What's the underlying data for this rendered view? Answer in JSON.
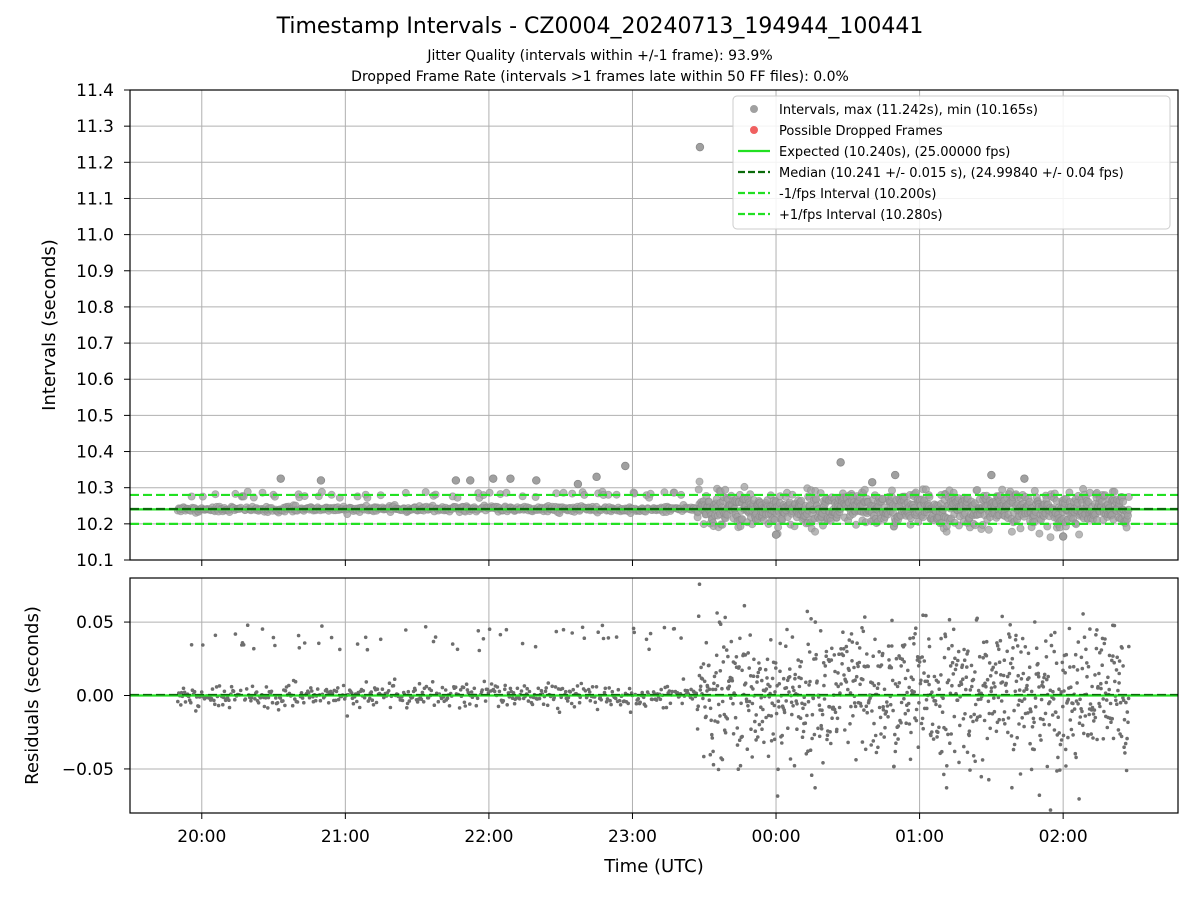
{
  "title": "Timestamp Intervals - CZ0004_20240713_194944_100441",
  "subtitle1": "Jitter Quality (intervals within +/-1 frame): 93.9%",
  "subtitle2": "Dropped Frame Rate (intervals >1 frames late within 50 FF files): 0.0%",
  "colors": {
    "points": "#808080",
    "dropped": "#f06060",
    "expected": "#22e022",
    "median": "#0a6a0a",
    "interval_lines": "#22e022",
    "grid": "#b0b0b0"
  },
  "chart_data": [
    {
      "type": "scatter",
      "panel": "intervals",
      "ylabel": "Intervals (seconds)",
      "ylim": [
        10.1,
        11.4
      ],
      "yticks": [
        "10.1",
        "10.2",
        "10.3",
        "10.4",
        "10.5",
        "10.6",
        "10.7",
        "10.8",
        "10.9",
        "11.0",
        "11.1",
        "11.2",
        "11.3",
        "11.4"
      ],
      "xlim_hours": [
        19.5,
        26.8
      ],
      "grid": true,
      "legend_position": "top-right",
      "legend": [
        {
          "kind": "marker",
          "color": "#a0a0a0",
          "label": "Intervals, max (11.242s), min (10.165s)"
        },
        {
          "kind": "marker",
          "color": "#f06060",
          "label": "Possible Dropped Frames"
        },
        {
          "kind": "line",
          "style": "solid",
          "color": "#22e022",
          "label": "Expected (10.240s), (25.00000 fps)"
        },
        {
          "kind": "line",
          "style": "dashed",
          "color": "#0a6a0a",
          "label": "Median (10.241 +/- 0.015 s), (24.99840 +/- 0.04 fps)"
        },
        {
          "kind": "line",
          "style": "dashed",
          "color": "#22e022",
          "label": "-1/fps Interval (10.200s)"
        },
        {
          "kind": "line",
          "style": "dashed",
          "color": "#22e022",
          "label": "+1/fps Interval (10.280s)"
        }
      ],
      "reference_lines": {
        "expected": 10.24,
        "median": 10.241,
        "minus_interval": 10.2,
        "plus_interval": 10.28
      },
      "data_range_hours": [
        19.83,
        26.46
      ],
      "noise_change_hour": 23.45,
      "max_point": {
        "x_hour": 23.47,
        "y": 11.242
      },
      "min_point": {
        "y": 10.165
      },
      "notable_points": [
        {
          "x_hour": 20.55,
          "y": 10.325
        },
        {
          "x_hour": 20.83,
          "y": 10.32
        },
        {
          "x_hour": 21.77,
          "y": 10.32
        },
        {
          "x_hour": 21.87,
          "y": 10.32
        },
        {
          "x_hour": 22.03,
          "y": 10.325
        },
        {
          "x_hour": 22.15,
          "y": 10.325
        },
        {
          "x_hour": 22.33,
          "y": 10.32
        },
        {
          "x_hour": 22.62,
          "y": 10.31
        },
        {
          "x_hour": 22.75,
          "y": 10.33
        },
        {
          "x_hour": 22.95,
          "y": 10.36
        },
        {
          "x_hour": 24.45,
          "y": 10.37
        },
        {
          "x_hour": 24.67,
          "y": 10.315
        },
        {
          "x_hour": 24.83,
          "y": 10.335
        },
        {
          "x_hour": 25.5,
          "y": 10.335
        },
        {
          "x_hour": 25.73,
          "y": 10.325
        },
        {
          "x_hour": 24.0,
          "y": 10.17
        },
        {
          "x_hour": 26.0,
          "y": 10.165
        }
      ]
    },
    {
      "type": "scatter",
      "panel": "residuals",
      "ylabel": "Residuals (seconds)",
      "xlabel": "Time (UTC)",
      "ylim": [
        -0.08,
        0.08
      ],
      "yticks": [
        {
          "value": 0.05,
          "label": "0.05"
        },
        {
          "value": 0.0,
          "label": "0.00"
        },
        {
          "value": -0.05,
          "label": "−0.05"
        }
      ],
      "xticks": [
        {
          "hour": 20,
          "label": "20:00"
        },
        {
          "hour": 21,
          "label": "21:00"
        },
        {
          "hour": 22,
          "label": "22:00"
        },
        {
          "hour": 23,
          "label": "23:00"
        },
        {
          "hour": 24,
          "label": "00:00"
        },
        {
          "hour": 25,
          "label": "01:00"
        },
        {
          "hour": 26,
          "label": "02:00"
        }
      ],
      "xlim_hours": [
        19.5,
        26.8
      ],
      "grid": true,
      "zero_line": 0.0,
      "data_range_hours": [
        19.83,
        26.46
      ],
      "noise_change_hour": 23.45
    }
  ]
}
